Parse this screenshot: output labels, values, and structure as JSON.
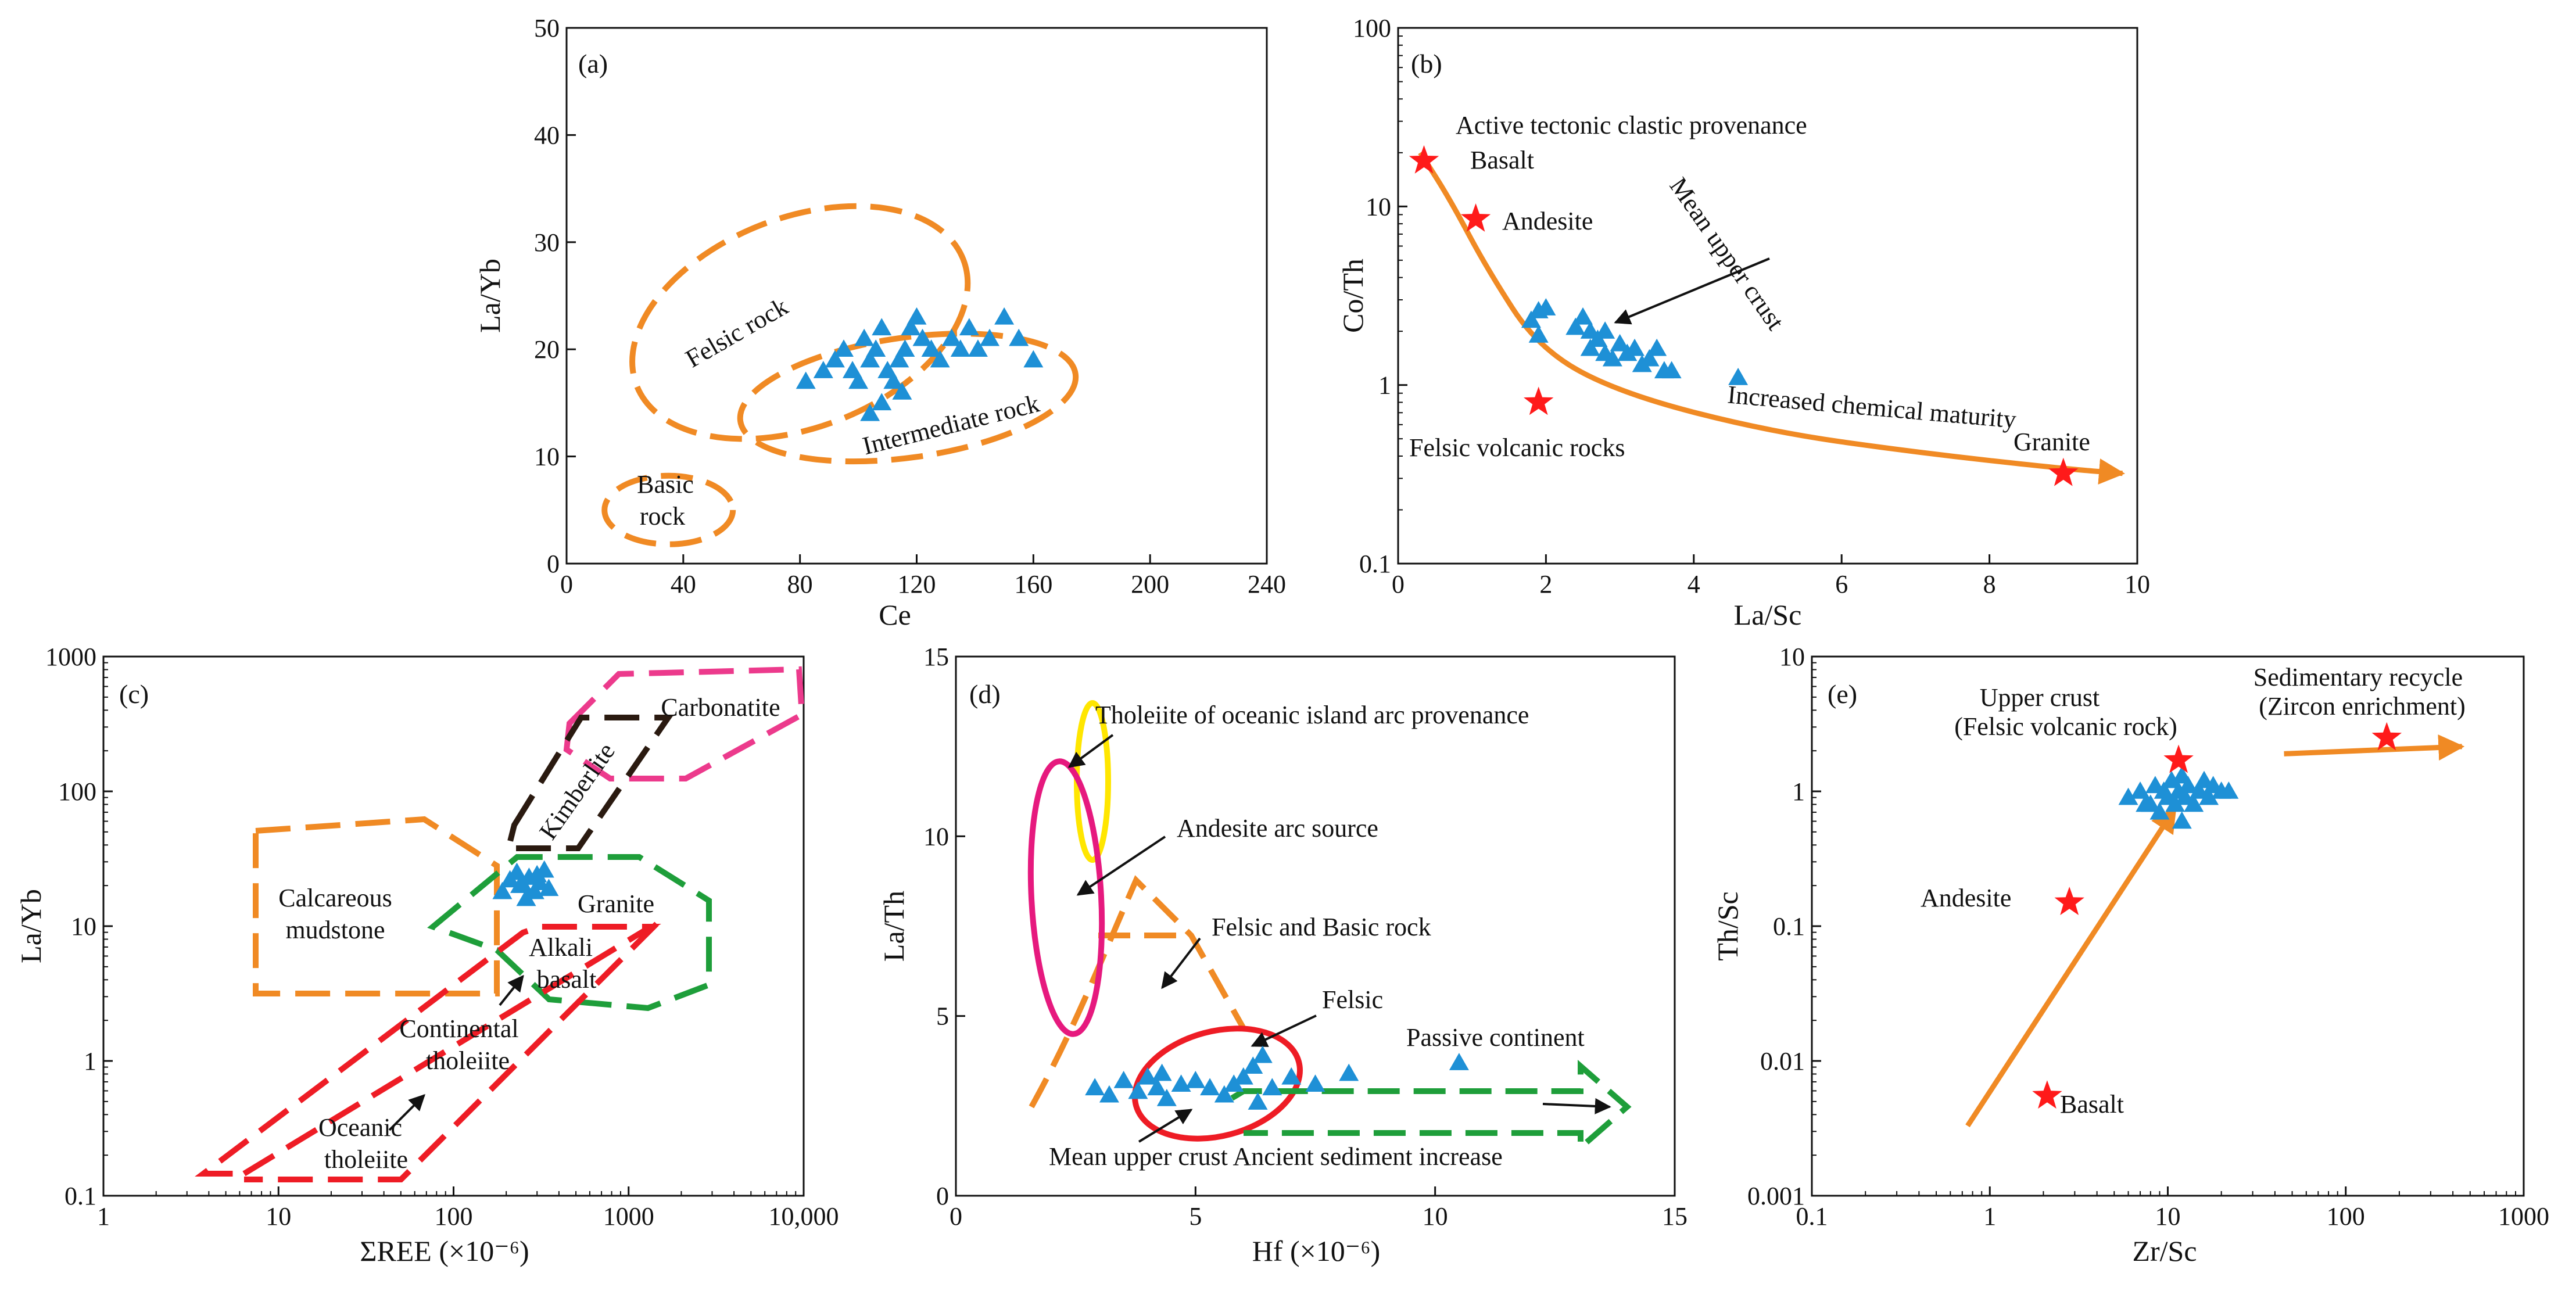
{
  "colors": {
    "points": "#1e90d6",
    "star": "#ff1a1a",
    "orange": "#f08a24",
    "red": "#ee1c25",
    "green": "#1e9e3a",
    "black": "#111111",
    "yellow": "#ffe600",
    "magenta": "#e6197e",
    "pink": "#ec3a8c",
    "brown": "#2a1a10"
  },
  "icons": {
    "point_marker": "blue-triangle",
    "reference_marker": "red-star"
  },
  "chart_data": [
    {
      "id": "a",
      "type": "scatter",
      "panel_label": "(a)",
      "xlabel": "Ce",
      "ylabel": "La/Yb",
      "xlim": [
        0,
        240
      ],
      "ylim": [
        0,
        50
      ],
      "xscale": "linear",
      "yscale": "linear",
      "xticks": [
        0,
        40,
        80,
        120,
        160,
        200,
        240
      ],
      "yticks": [
        0,
        10,
        20,
        30,
        40,
        50
      ],
      "xticklabels": [
        "0",
        "40",
        "80",
        "120",
        "160",
        "200",
        "240"
      ],
      "yticklabels": [
        "0",
        "10",
        "20",
        "30",
        "40",
        "50"
      ],
      "points": [
        [
          82,
          17
        ],
        [
          88,
          18
        ],
        [
          92,
          19
        ],
        [
          95,
          20
        ],
        [
          98,
          18
        ],
        [
          100,
          17
        ],
        [
          102,
          21
        ],
        [
          104,
          19
        ],
        [
          106,
          20
        ],
        [
          108,
          22
        ],
        [
          110,
          18
        ],
        [
          112,
          17
        ],
        [
          114,
          19
        ],
        [
          115,
          16
        ],
        [
          116,
          20
        ],
        [
          118,
          22
        ],
        [
          120,
          23
        ],
        [
          122,
          21
        ],
        [
          125,
          20
        ],
        [
          128,
          19
        ],
        [
          132,
          21
        ],
        [
          135,
          20
        ],
        [
          138,
          22
        ],
        [
          141,
          20
        ],
        [
          145,
          21
        ],
        [
          150,
          23
        ],
        [
          155,
          21
        ],
        [
          160,
          19
        ],
        [
          104,
          14
        ],
        [
          108,
          15
        ]
      ],
      "fields": [
        {
          "name": "Felsic rock",
          "label": "Felsic rock",
          "color": "orange",
          "cx": 80,
          "cy": 22.5,
          "rx": 60,
          "ry": 9.8,
          "angle": -21
        },
        {
          "name": "Intermediate rock",
          "label": "Intermediate rock",
          "color": "orange",
          "cx": 117,
          "cy": 15.5,
          "rx": 58,
          "ry": 5.6,
          "angle": -8
        },
        {
          "name": "Basic rock",
          "label1": "Basic",
          "label2": "rock",
          "color": "orange",
          "cx": 35,
          "cy": 5,
          "rx": 22,
          "ry": 3.2,
          "angle": 0
        }
      ]
    },
    {
      "id": "b",
      "type": "scatter",
      "panel_label": "(b)",
      "xlabel": "La/Sc",
      "ylabel": "Co/Th",
      "xlim": [
        0,
        10
      ],
      "ylim": [
        0.1,
        100
      ],
      "xscale": "linear",
      "yscale": "log",
      "xticks": [
        0,
        2,
        4,
        6,
        8,
        10
      ],
      "yticks": [
        0.1,
        1,
        10,
        100
      ],
      "xticklabels": [
        "0",
        "2",
        "4",
        "6",
        "8",
        "10"
      ],
      "yticklabels": [
        "0.1",
        "1",
        "10",
        "100"
      ],
      "points": [
        [
          1.8,
          2.3
        ],
        [
          1.9,
          2.6
        ],
        [
          2.0,
          2.7
        ],
        [
          1.9,
          1.9
        ],
        [
          2.4,
          2.1
        ],
        [
          2.5,
          2.4
        ],
        [
          2.6,
          2.0
        ],
        [
          2.7,
          1.8
        ],
        [
          2.6,
          1.6
        ],
        [
          2.8,
          2.0
        ],
        [
          2.9,
          1.4
        ],
        [
          3.0,
          1.7
        ],
        [
          3.1,
          1.5
        ],
        [
          3.2,
          1.6
        ],
        [
          3.3,
          1.3
        ],
        [
          3.4,
          1.4
        ],
        [
          3.5,
          1.6
        ],
        [
          3.6,
          1.2
        ],
        [
          3.7,
          1.2
        ],
        [
          2.8,
          1.5
        ],
        [
          4.6,
          1.1
        ]
      ],
      "references": [
        {
          "name": "Basalt",
          "label": "Basalt",
          "x": 0.35,
          "y": 18
        },
        {
          "name": "Andesite",
          "label": "Andesite",
          "x": 1.05,
          "y": 8.5
        },
        {
          "name": "Felsic volcanic rocks",
          "label": "Felsic volcanic rocks",
          "x": 1.9,
          "y": 0.8
        },
        {
          "name": "Granite",
          "label": "Granite",
          "x": 9.0,
          "y": 0.32
        }
      ],
      "trend_curve": [
        [
          0.3,
          20
        ],
        [
          0.7,
          11
        ],
        [
          1.2,
          4.5
        ],
        [
          1.9,
          1.6
        ],
        [
          3,
          0.9
        ],
        [
          5,
          0.55
        ],
        [
          7,
          0.42
        ],
        [
          9,
          0.34
        ],
        [
          9.8,
          0.32
        ]
      ],
      "annotations": {
        "provenance": "Active tectonic clastic provenance",
        "mean_upper_crust": "Mean upper crust",
        "maturity": "Increased chemical maturity"
      }
    },
    {
      "id": "c",
      "type": "scatter",
      "panel_label": "(c)",
      "xlabel": "ΣREE (×10⁻⁶)",
      "ylabel": "La/Yb",
      "xlim": [
        1,
        10000
      ],
      "ylim": [
        0.1,
        1000
      ],
      "xscale": "log",
      "yscale": "log",
      "xticks": [
        1,
        10,
        100,
        1000,
        10000
      ],
      "yticks": [
        0.1,
        1,
        10,
        100,
        1000
      ],
      "xticklabels": [
        "1",
        "10",
        "100",
        "1000",
        "10,000"
      ],
      "yticklabels": [
        "0.1",
        "1",
        "10",
        "100",
        "1000"
      ],
      "points": [
        [
          190,
          18
        ],
        [
          210,
          22
        ],
        [
          230,
          25
        ],
        [
          250,
          20
        ],
        [
          270,
          23
        ],
        [
          290,
          18
        ],
        [
          310,
          21
        ],
        [
          330,
          26
        ],
        [
          350,
          19
        ],
        [
          260,
          16
        ],
        [
          300,
          24
        ],
        [
          240,
          20
        ]
      ],
      "fields": {
        "calcareous": {
          "label1": "Calcareous",
          "label2": "mudstone"
        },
        "granite": {
          "label": "Granite"
        },
        "alkali": {
          "label1": "Alkali",
          "label2": "basalt"
        },
        "kimberlite": {
          "label": "Kimberlite"
        },
        "carbonatite": {
          "label": "Carbonatite"
        },
        "continental": {
          "label1": "Continental",
          "label2": "tholeiite"
        },
        "oceanic": {
          "label1": "Oceanic",
          "label2": "tholeiite"
        }
      }
    },
    {
      "id": "d",
      "type": "scatter",
      "panel_label": "(d)",
      "xlabel": "Hf (×10⁻⁶)",
      "ylabel": "La/Th",
      "xlim": [
        0,
        15
      ],
      "ylim": [
        0,
        15
      ],
      "xscale": "linear",
      "yscale": "linear",
      "xticks": [
        0,
        5,
        10,
        15
      ],
      "yticks": [
        0,
        5,
        10,
        15
      ],
      "xticklabels": [
        "0",
        "5",
        "10",
        "15"
      ],
      "yticklabels": [
        "0",
        "5",
        "10",
        "15"
      ],
      "points": [
        [
          2.9,
          3.0
        ],
        [
          3.2,
          2.8
        ],
        [
          3.5,
          3.2
        ],
        [
          3.8,
          2.9
        ],
        [
          4.0,
          3.3
        ],
        [
          4.2,
          3.0
        ],
        [
          4.4,
          2.7
        ],
        [
          4.7,
          3.1
        ],
        [
          5.0,
          3.2
        ],
        [
          5.3,
          3.0
        ],
        [
          5.6,
          2.8
        ],
        [
          6.0,
          3.3
        ],
        [
          6.2,
          3.6
        ],
        [
          6.4,
          3.9
        ],
        [
          6.3,
          2.6
        ],
        [
          6.6,
          3.0
        ],
        [
          7.0,
          3.3
        ],
        [
          7.5,
          3.1
        ],
        [
          8.2,
          3.4
        ],
        [
          10.5,
          3.7
        ],
        [
          4.3,
          3.4
        ],
        [
          5.8,
          3.1
        ]
      ],
      "annotations": {
        "tholeiite_arc": "Tholeiite of oceanic island arc provenance",
        "andesite_arc": "Andesite arc source",
        "felsic_basic": "Felsic and Basic rock",
        "felsic": "Felsic",
        "passive": "Passive continent",
        "bottom": "Mean upper crust Ancient sediment increase"
      }
    },
    {
      "id": "e",
      "type": "scatter",
      "panel_label": "(e)",
      "xlabel": "Zr/Sc",
      "ylabel": "Th/Sc",
      "xlim": [
        0.1,
        1000
      ],
      "ylim": [
        0.001,
        10
      ],
      "xscale": "log",
      "yscale": "log",
      "xticks": [
        0.1,
        1,
        10,
        100,
        1000
      ],
      "yticks": [
        0.001,
        0.01,
        0.1,
        1,
        10
      ],
      "xticklabels": [
        "0.1",
        "1",
        "10",
        "100",
        "1000"
      ],
      "yticklabels": [
        "0.001",
        "0.01",
        "0.1",
        "1",
        "10"
      ],
      "points": [
        [
          6,
          0.9
        ],
        [
          7,
          1.0
        ],
        [
          8,
          0.8
        ],
        [
          8.5,
          1.1
        ],
        [
          9,
          0.7
        ],
        [
          9.5,
          1.0
        ],
        [
          10,
          0.9
        ],
        [
          10.5,
          1.2
        ],
        [
          11,
          0.8
        ],
        [
          11.5,
          1.0
        ],
        [
          12,
          0.6
        ],
        [
          12.5,
          0.9
        ],
        [
          13,
          1.1
        ],
        [
          14,
          0.8
        ],
        [
          15,
          1.0
        ],
        [
          16,
          1.2
        ],
        [
          17,
          0.9
        ],
        [
          18,
          1.1
        ],
        [
          20,
          1.0
        ],
        [
          22,
          1.0
        ],
        [
          7.5,
          0.8
        ],
        [
          12,
          1.3
        ]
      ],
      "references": [
        {
          "name": "Upper crust",
          "x": 11.5,
          "y": 1.7
        },
        {
          "name": "Andesite",
          "label": "Andesite",
          "x": 2.8,
          "y": 0.15
        },
        {
          "name": "Basalt",
          "label": "Basalt",
          "x": 2.1,
          "y": 0.0055
        },
        {
          "name": "Sedimentary recycle",
          "x": 170,
          "y": 2.5
        }
      ],
      "annotations": {
        "upper1": "Upper crust",
        "upper2": "(Felsic volcanic rock)",
        "sed1": "Sedimentary recycle",
        "sed2": "(Zircon enrichment)"
      }
    }
  ]
}
